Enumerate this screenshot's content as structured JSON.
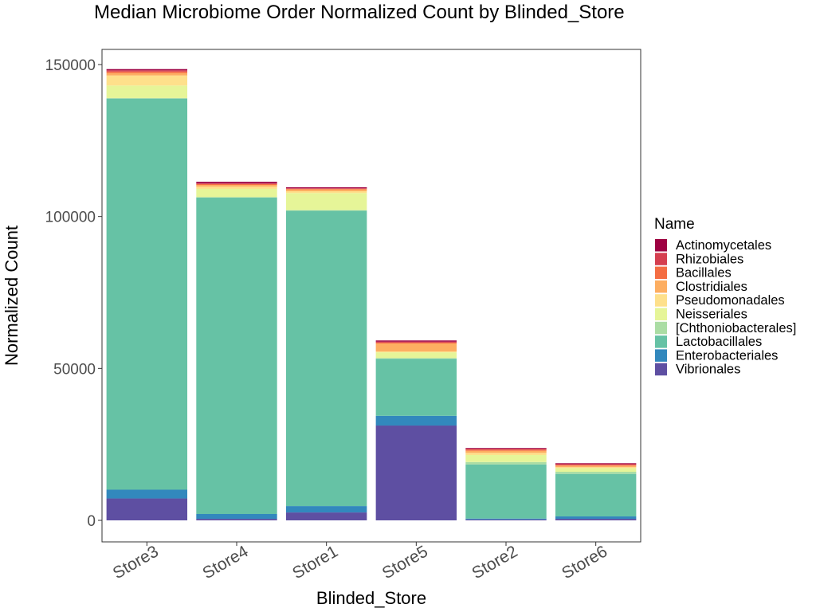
{
  "chart_data": {
    "type": "bar",
    "stacked": true,
    "title": "Median Microbiome Order Normalized Count by Blinded_Store",
    "xlabel": "Blinded_Store",
    "ylabel": "Normalized Count",
    "ylim": [
      -7300,
      155000
    ],
    "y_ticks": [
      0,
      50000,
      100000,
      150000
    ],
    "y_tick_labels": [
      "0",
      "50000",
      "100000",
      "150000"
    ],
    "grid": false,
    "legend": {
      "title": "Name",
      "position": "right"
    },
    "categories": [
      "Store3",
      "Store4",
      "Store1",
      "Store5",
      "Store2",
      "Store6"
    ],
    "series": [
      {
        "name": "Vibrionales",
        "color": "#5E4FA2",
        "values": [
          7200,
          500,
          2600,
          31200,
          300,
          500
        ]
      },
      {
        "name": "Enterobacteriales",
        "color": "#3288BD",
        "values": [
          2900,
          1600,
          2100,
          3200,
          300,
          800
        ]
      },
      {
        "name": "Lactobacillales",
        "color": "#66C2A5",
        "values": [
          128700,
          104100,
          97200,
          18800,
          17800,
          14000
        ]
      },
      {
        "name": "[Chthoniobacterales]",
        "color": "#ABDDA4",
        "values": [
          200,
          200,
          200,
          200,
          800,
          700
        ]
      },
      {
        "name": "Neisseriales",
        "color": "#E6F598",
        "values": [
          4100,
          2700,
          5600,
          1900,
          2300,
          1200
        ]
      },
      {
        "name": "Pseudomonadales",
        "color": "#FEE08B",
        "values": [
          3300,
          700,
          600,
          300,
          700,
          300
        ]
      },
      {
        "name": "Clostridiales",
        "color": "#FDAE61",
        "values": [
          800,
          600,
          600,
          2600,
          700,
          500
        ]
      },
      {
        "name": "Bacillales",
        "color": "#F46D43",
        "values": [
          500,
          300,
          200,
          300,
          400,
          300
        ]
      },
      {
        "name": "Rhizobiales",
        "color": "#D53E4F",
        "values": [
          400,
          200,
          200,
          300,
          200,
          200
        ]
      },
      {
        "name": "Actinomycetales",
        "color": "#9E0142",
        "values": [
          400,
          500,
          300,
          400,
          300,
          300
        ]
      }
    ]
  }
}
